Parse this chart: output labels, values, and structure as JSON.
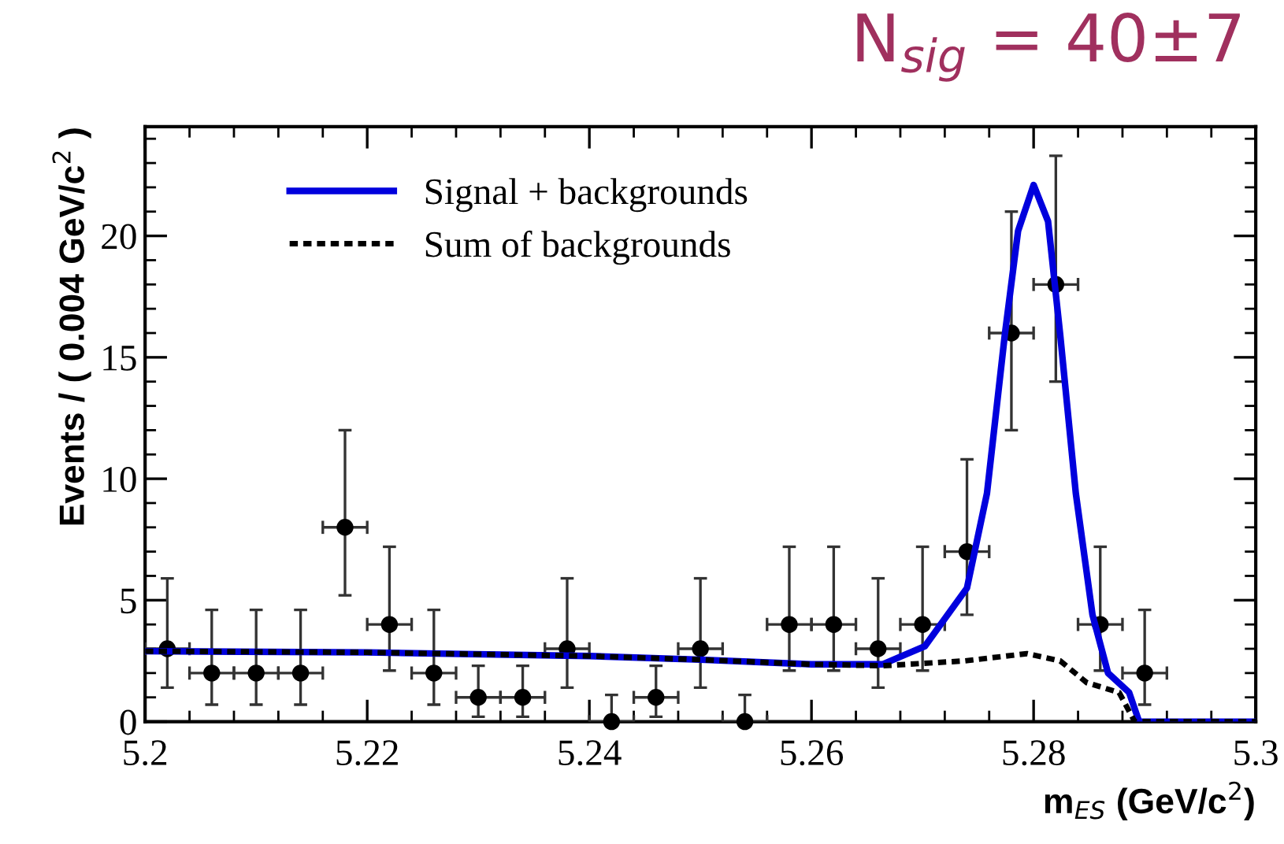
{
  "chart_data": {
    "type": "scatter",
    "xlabel": "m$_{ES}$ (GeV/c$^{2}$)",
    "ylabel": "Events / ( 0.004 GeV/c$^{2}$ )",
    "annotations": [
      "N$_{sig}$ = 40±7"
    ],
    "xlim": [
      5.2,
      5.3
    ],
    "ylim": [
      0,
      24.5
    ],
    "xticks": [
      {
        "value": 5.2,
        "label": "5.2"
      },
      5.22,
      5.24,
      5.26,
      5.28,
      {
        "value": 5.3,
        "label": "5.3"
      }
    ],
    "yticks": [
      0,
      5,
      10,
      15,
      20
    ],
    "grid": false,
    "legend": "top left",
    "series": [
      {
        "color": "#000000",
        "marker": "circle",
        "x": [
          5.202,
          5.206,
          5.21,
          5.214,
          5.218,
          5.222,
          5.226,
          5.23,
          5.234,
          5.238,
          5.242,
          5.246,
          5.25,
          5.254,
          5.258,
          5.262,
          5.266,
          5.27,
          5.274,
          5.278,
          5.282,
          5.286,
          5.29
        ],
        "values": [
          3,
          2,
          2,
          2,
          8,
          4,
          2,
          1,
          1,
          3,
          0,
          1,
          3,
          0,
          4,
          4,
          3,
          4,
          7,
          16,
          18,
          4,
          2
        ],
        "errors": [
          [
            1.4,
            5.9
          ],
          [
            0.7,
            4.6
          ],
          [
            0.7,
            4.6
          ],
          [
            0.7,
            4.6
          ],
          [
            5.2,
            12.0
          ],
          [
            2.1,
            7.2
          ],
          [
            0.7,
            4.6
          ],
          [
            0.2,
            2.3
          ],
          [
            0.2,
            2.3
          ],
          [
            1.4,
            5.9
          ],
          [
            0,
            1.1
          ],
          [
            0.2,
            2.3
          ],
          [
            1.4,
            5.9
          ],
          [
            0,
            1.1
          ],
          [
            2.1,
            7.2
          ],
          [
            2.1,
            7.2
          ],
          [
            1.4,
            5.9
          ],
          [
            2.1,
            7.2
          ],
          [
            4.4,
            10.8
          ],
          [
            12.0,
            21.0
          ],
          [
            14.0,
            23.3
          ],
          [
            2.1,
            7.2
          ],
          [
            0.7,
            4.6
          ]
        ],
        "xerrors": [
          0.002,
          0.002,
          0.002,
          0.002,
          0.002,
          0.002,
          0.002,
          0.002,
          0.002,
          0.002,
          0.002,
          0.002,
          0.002,
          0.002,
          0.002,
          0.002,
          0.002,
          0.002,
          0.002,
          0.002,
          0.002,
          0.002,
          0.002
        ]
      },
      {
        "type": "line",
        "name": "Signal + backgrounds",
        "color": "#0000dd",
        "line_style": "solid",
        "marker": "none",
        "x": [
          5.2,
          5.22,
          5.24,
          5.25,
          5.26,
          5.2664,
          5.2702,
          5.274,
          5.2758,
          5.2774,
          5.2786,
          5.28,
          5.2813,
          5.2824,
          5.2838,
          5.2853,
          5.2867,
          5.2886,
          5.2895,
          5.3
        ],
        "values": [
          2.9,
          2.85,
          2.7,
          2.55,
          2.36,
          2.36,
          3.1,
          5.5,
          9.4,
          15.9,
          20.2,
          22.1,
          20.6,
          15.9,
          9.4,
          4.4,
          2.0,
          1.2,
          0,
          0
        ]
      },
      {
        "type": "line",
        "name": "Sum of backgrounds",
        "color": "#000000",
        "line_style": "dotted",
        "marker": "none",
        "x": [
          5.2,
          5.22,
          5.24,
          5.25,
          5.26,
          5.2664,
          5.2738,
          5.2794,
          5.2824,
          5.2848,
          5.2877,
          5.2891,
          5.3
        ],
        "values": [
          2.9,
          2.85,
          2.7,
          2.55,
          2.36,
          2.3,
          2.5,
          2.8,
          2.5,
          1.6,
          1.2,
          0,
          0
        ]
      }
    ]
  }
}
